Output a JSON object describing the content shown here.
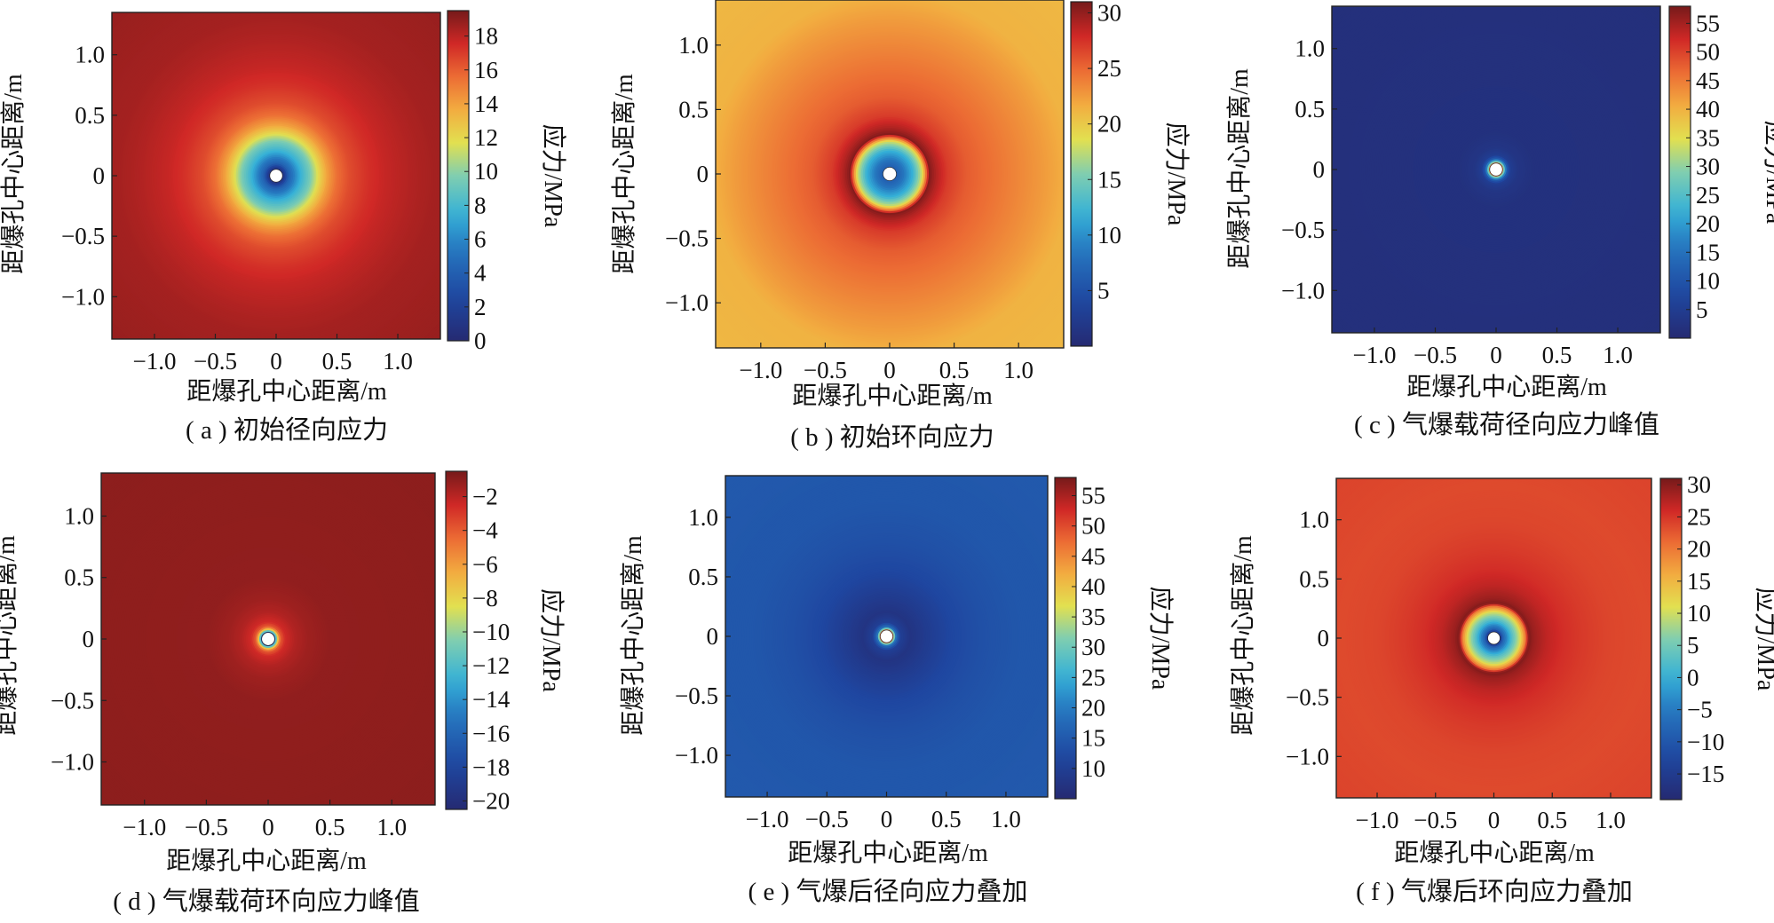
{
  "figure": {
    "panels": [
      {
        "id": "a",
        "caption": "( a ) 初始径向应力"
      },
      {
        "id": "b",
        "caption": "( b ) 初始环向应力"
      },
      {
        "id": "c",
        "caption": "( c ) 气爆载荷径向应力峰值"
      },
      {
        "id": "d",
        "caption": "( d ) 气爆载荷环向应力峰值"
      },
      {
        "id": "e",
        "caption": "( e ) 气爆后径向应力叠加"
      },
      {
        "id": "f",
        "caption": "( f ) 气爆后环向应力叠加"
      }
    ]
  },
  "chart_data": [
    {
      "panel": "a",
      "type": "heatmap",
      "title": "( a ) 初始径向应力",
      "xlabel": "距爆孔中心距离/m",
      "ylabel": "距爆孔中心距离/m",
      "colorbar_label": "应力/MPa",
      "xlim": [
        -1.35,
        1.35
      ],
      "ylim": [
        -1.35,
        1.35
      ],
      "x_ticks": [
        -1.0,
        -0.5,
        0,
        0.5,
        1.0
      ],
      "x_tick_labels": [
        "−1.0",
        "−0.5",
        "0",
        "0.5",
        "1.0"
      ],
      "y_ticks": [
        1.0,
        0.5,
        0,
        -0.5,
        -1.0
      ],
      "y_tick_labels": [
        "1.0",
        "0.5",
        "0",
        "−0.5",
        "−1.0"
      ],
      "clim": [
        0,
        19.5
      ],
      "colorbar_ticks": [
        0,
        2,
        4,
        6,
        8,
        10,
        12,
        14,
        16,
        18
      ],
      "colorbar_tick_labels": [
        "0",
        "2",
        "4",
        "6",
        "8",
        "10",
        "12",
        "14",
        "16",
        "18"
      ],
      "hole_radius": 0.045,
      "radial_profile": {
        "r": [
          0.045,
          0.1,
          0.2,
          0.28,
          0.35,
          0.42,
          0.5,
          0.6,
          0.75,
          0.9,
          1.1,
          1.3,
          1.95
        ],
        "v": [
          0,
          4,
          7.5,
          9.5,
          12,
          14,
          15.5,
          16.5,
          17.3,
          17.8,
          18.2,
          18.5,
          18.8
        ]
      }
    },
    {
      "panel": "b",
      "type": "heatmap",
      "title": "( b ) 初始环向应力",
      "xlabel": "距爆孔中心距离/m",
      "ylabel": "距爆孔中心距离/m",
      "colorbar_label": "应力/MPa",
      "xlim": [
        -1.35,
        1.35
      ],
      "ylim": [
        -1.35,
        1.35
      ],
      "x_ticks": [
        -1.0,
        -0.5,
        0,
        0.5,
        1.0
      ],
      "x_tick_labels": [
        "−1.0",
        "−0.5",
        "0",
        "0.5",
        "1.0"
      ],
      "y_ticks": [
        1.0,
        0.5,
        0,
        -0.5,
        -1.0
      ],
      "y_tick_labels": [
        "1.0",
        "0.5",
        "0",
        "−0.5",
        "−1.0"
      ],
      "clim": [
        0,
        31
      ],
      "colorbar_ticks": [
        5,
        10,
        15,
        20,
        25,
        30
      ],
      "colorbar_tick_labels": [
        "5",
        "10",
        "15",
        "20",
        "25",
        "30"
      ],
      "hole_radius": 0.045,
      "radial_profile": {
        "r": [
          0.045,
          0.1,
          0.18,
          0.25,
          0.28,
          0.31,
          0.36,
          0.45,
          0.6,
          0.8,
          1.0,
          1.2,
          1.4,
          1.95
        ],
        "v": [
          6,
          8,
          12,
          18,
          24,
          30.5,
          29,
          27,
          25.5,
          24.5,
          23.5,
          22.5,
          21.3,
          21
        ]
      }
    },
    {
      "panel": "c",
      "type": "heatmap",
      "title": "( c ) 气爆载荷径向应力峰值",
      "xlabel": "距爆孔中心距离/m",
      "ylabel": "距爆孔中心距离/m",
      "colorbar_label": "应力/MPa",
      "xlim": [
        -1.35,
        1.35
      ],
      "ylim": [
        -1.35,
        1.35
      ],
      "x_ticks": [
        -1.0,
        -0.5,
        0,
        0.5,
        1.0
      ],
      "x_tick_labels": [
        "−1.0",
        "−0.5",
        "0",
        "0.5",
        "1.0"
      ],
      "y_ticks": [
        1.0,
        0.5,
        0,
        -0.5,
        -1.0
      ],
      "y_tick_labels": [
        "1.0",
        "0.5",
        "0",
        "−0.5",
        "−1.0"
      ],
      "clim": [
        0,
        58
      ],
      "colorbar_ticks": [
        5,
        10,
        15,
        20,
        25,
        30,
        35,
        40,
        45,
        50,
        55
      ],
      "colorbar_tick_labels": [
        "5",
        "10",
        "15",
        "20",
        "25",
        "30",
        "35",
        "40",
        "45",
        "50",
        "55"
      ],
      "hole_radius": 0.045,
      "radial_profile": {
        "r": [
          0.045,
          0.055,
          0.07,
          0.09,
          0.12,
          0.18,
          0.3,
          1.95
        ],
        "v": [
          57,
          40,
          22,
          11,
          5,
          3,
          2,
          1.5
        ]
      }
    },
    {
      "panel": "d",
      "type": "heatmap",
      "title": "( d ) 气爆载荷环向应力峰值",
      "xlabel": "距爆孔中心距离/m",
      "ylabel": "距爆孔中心距离/m",
      "colorbar_label": "应力/MPa",
      "xlim": [
        -1.35,
        1.35
      ],
      "ylim": [
        -1.35,
        1.35
      ],
      "x_ticks": [
        -1.0,
        -0.5,
        0,
        0.5,
        1.0
      ],
      "x_tick_labels": [
        "−1.0",
        "−0.5",
        "0",
        "0.5",
        "1.0"
      ],
      "y_ticks": [
        1.0,
        0.5,
        0,
        -0.5,
        -1.0
      ],
      "y_tick_labels": [
        "1.0",
        "0.5",
        "0",
        "−0.5",
        "−1.0"
      ],
      "clim": [
        -20.5,
        -0.5
      ],
      "colorbar_ticks": [
        -2,
        -4,
        -6,
        -8,
        -10,
        -12,
        -14,
        -16,
        -18,
        -20
      ],
      "colorbar_tick_labels": [
        "−2",
        "−4",
        "−6",
        "−8",
        "−10",
        "−12",
        "−14",
        "−16",
        "−18",
        "−20"
      ],
      "hole_radius": 0.045,
      "radial_profile": {
        "r": [
          0.045,
          0.06,
          0.08,
          0.1,
          0.14,
          0.22,
          0.32,
          0.5,
          1.95
        ],
        "v": [
          -20.3,
          -13,
          -7,
          -4,
          -2.5,
          -1.8,
          -1.4,
          -1.1,
          -1
        ]
      }
    },
    {
      "panel": "e",
      "type": "heatmap",
      "title": "( e ) 气爆后径向应力叠加",
      "xlabel": "距爆孔中心距离/m",
      "ylabel": "距爆孔中心距离/m",
      "colorbar_label": "应力/MPa",
      "xlim": [
        -1.35,
        1.35
      ],
      "ylim": [
        -1.35,
        1.35
      ],
      "x_ticks": [
        -1.0,
        -0.5,
        0,
        0.5,
        1.0
      ],
      "x_tick_labels": [
        "−1.0",
        "−0.5",
        "0",
        "0.5",
        "1.0"
      ],
      "y_ticks": [
        1.0,
        0.5,
        0,
        -0.5,
        -1.0
      ],
      "y_tick_labels": [
        "1.0",
        "0.5",
        "0",
        "−0.5",
        "−1.0"
      ],
      "clim": [
        5,
        58
      ],
      "colorbar_ticks": [
        10,
        15,
        20,
        25,
        30,
        35,
        40,
        45,
        50,
        55
      ],
      "colorbar_tick_labels": [
        "10",
        "15",
        "20",
        "25",
        "30",
        "35",
        "40",
        "45",
        "50",
        "55"
      ],
      "hole_radius": 0.045,
      "radial_profile": {
        "r": [
          0.045,
          0.06,
          0.08,
          0.12,
          0.2,
          0.35,
          0.55,
          0.8,
          1.1,
          1.95
        ],
        "v": [
          57,
          35,
          18,
          10,
          7.5,
          9.5,
          12,
          13.5,
          14.5,
          15
        ]
      }
    },
    {
      "panel": "f",
      "type": "heatmap",
      "title": "( f ) 气爆后环向应力叠加",
      "xlabel": "距爆孔中心距离/m",
      "ylabel": "距爆孔中心距离/m",
      "colorbar_label": "应力/MPa",
      "xlim": [
        -1.35,
        1.35
      ],
      "ylim": [
        -1.35,
        1.35
      ],
      "x_ticks": [
        -1.0,
        -0.5,
        0,
        0.5,
        1.0
      ],
      "x_tick_labels": [
        "−1.0",
        "−0.5",
        "0",
        "0.5",
        "1.0"
      ],
      "y_ticks": [
        1.0,
        0.5,
        0,
        -0.5,
        -1.0
      ],
      "y_tick_labels": [
        "1.0",
        "0.5",
        "0",
        "−0.5",
        "−1.0"
      ],
      "clim": [
        -19,
        31
      ],
      "colorbar_ticks": [
        30,
        25,
        20,
        15,
        10,
        5,
        0,
        -5,
        -10,
        -15
      ],
      "colorbar_tick_labels": [
        "30",
        "25",
        "20",
        "15",
        "10",
        "5",
        "0",
        "−5",
        "−10",
        "−15"
      ],
      "hole_radius": 0.045,
      "radial_profile": {
        "r": [
          0.045,
          0.08,
          0.15,
          0.22,
          0.27,
          0.3,
          0.34,
          0.45,
          0.6,
          0.8,
          1.0,
          1.3,
          1.95
        ],
        "v": [
          -18,
          -8,
          2,
          10,
          20,
          30.5,
          29,
          27,
          25.5,
          24.5,
          23.8,
          23.5,
          24
        ]
      }
    }
  ]
}
